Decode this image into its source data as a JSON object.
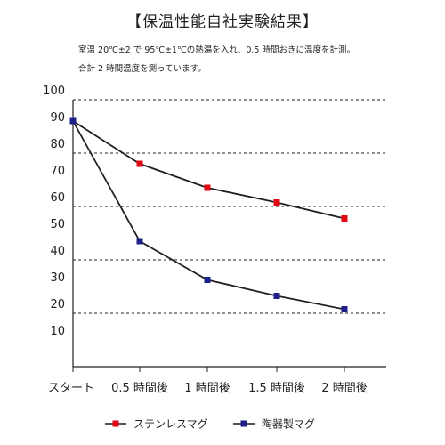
{
  "title": "【保温性能自社実験結果】",
  "notes": [
    "室温 20℃±2 で 95℃±1℃の熱湯を入れ、0.5 時間おきに温度を計測。",
    "合計 2 時間温度を測っています。"
  ],
  "chart_data": {
    "type": "line",
    "title": "【保温性能自社実験結果】",
    "xlabel": "",
    "ylabel": "",
    "categories": [
      "スタート",
      "0.5 時間後",
      "1 時間後",
      "1.5 時間後",
      "2 時間後"
    ],
    "y_ticks": [
      10,
      20,
      30,
      40,
      50,
      60,
      70,
      80,
      90,
      100
    ],
    "ylim": [
      0,
      100
    ],
    "dashed_grid_at": [
      20,
      40,
      60,
      80,
      100
    ],
    "legend_position": "bottom",
    "series": [
      {
        "name": "ステンレスマグ",
        "values": [
          92,
          76,
          67,
          61.5,
          55.5
        ],
        "color": "#e30613",
        "marker": "square"
      },
      {
        "name": "陶器製マグ",
        "values": [
          92,
          47,
          32.5,
          26.5,
          21.5
        ],
        "color": "#1d2088",
        "marker": "square"
      }
    ],
    "line_color": "#231f20"
  }
}
